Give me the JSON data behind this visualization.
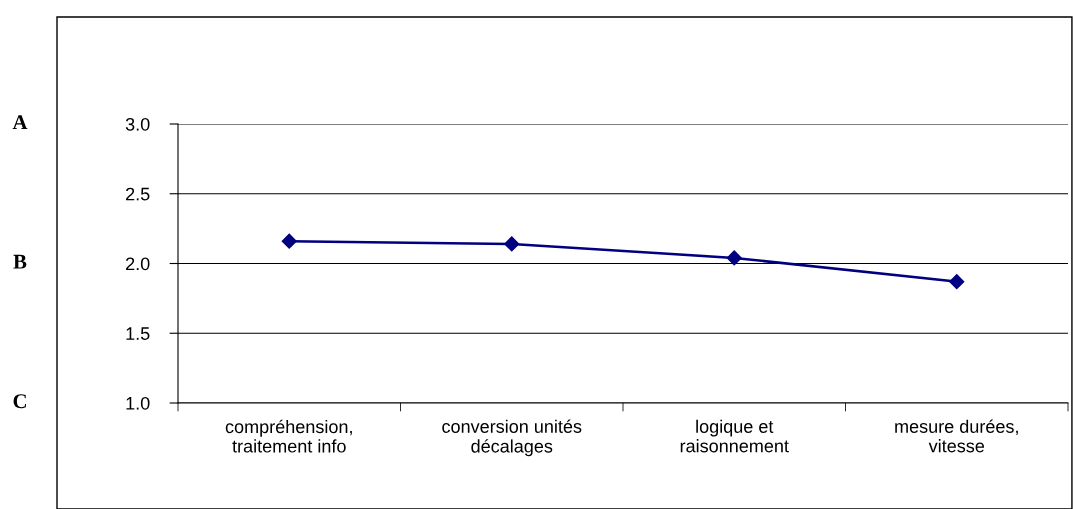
{
  "chart_data": {
    "type": "line",
    "categories": [
      "compréhension,\ntraitement info",
      "conversion unités\ndécalages",
      "logique et\nraisonnement",
      "mesure durées,\nvitesse"
    ],
    "series": [
      {
        "color": "#000080",
        "values": [
          2.16,
          2.14,
          2.04,
          1.87
        ]
      }
    ],
    "ylim": [
      1.0,
      3.0
    ],
    "yticks": [
      {
        "value": 1.0,
        "label": "1.0"
      },
      {
        "value": 1.5,
        "label": "1.5"
      },
      {
        "value": 2.0,
        "label": "2.0"
      },
      {
        "value": 2.5,
        "label": "2.5"
      },
      {
        "value": 3.0,
        "label": "3.0"
      }
    ],
    "annotations": [
      "A",
      "B",
      "C"
    ],
    "grid": "y",
    "marker": "diamond",
    "line_style": "solid"
  }
}
